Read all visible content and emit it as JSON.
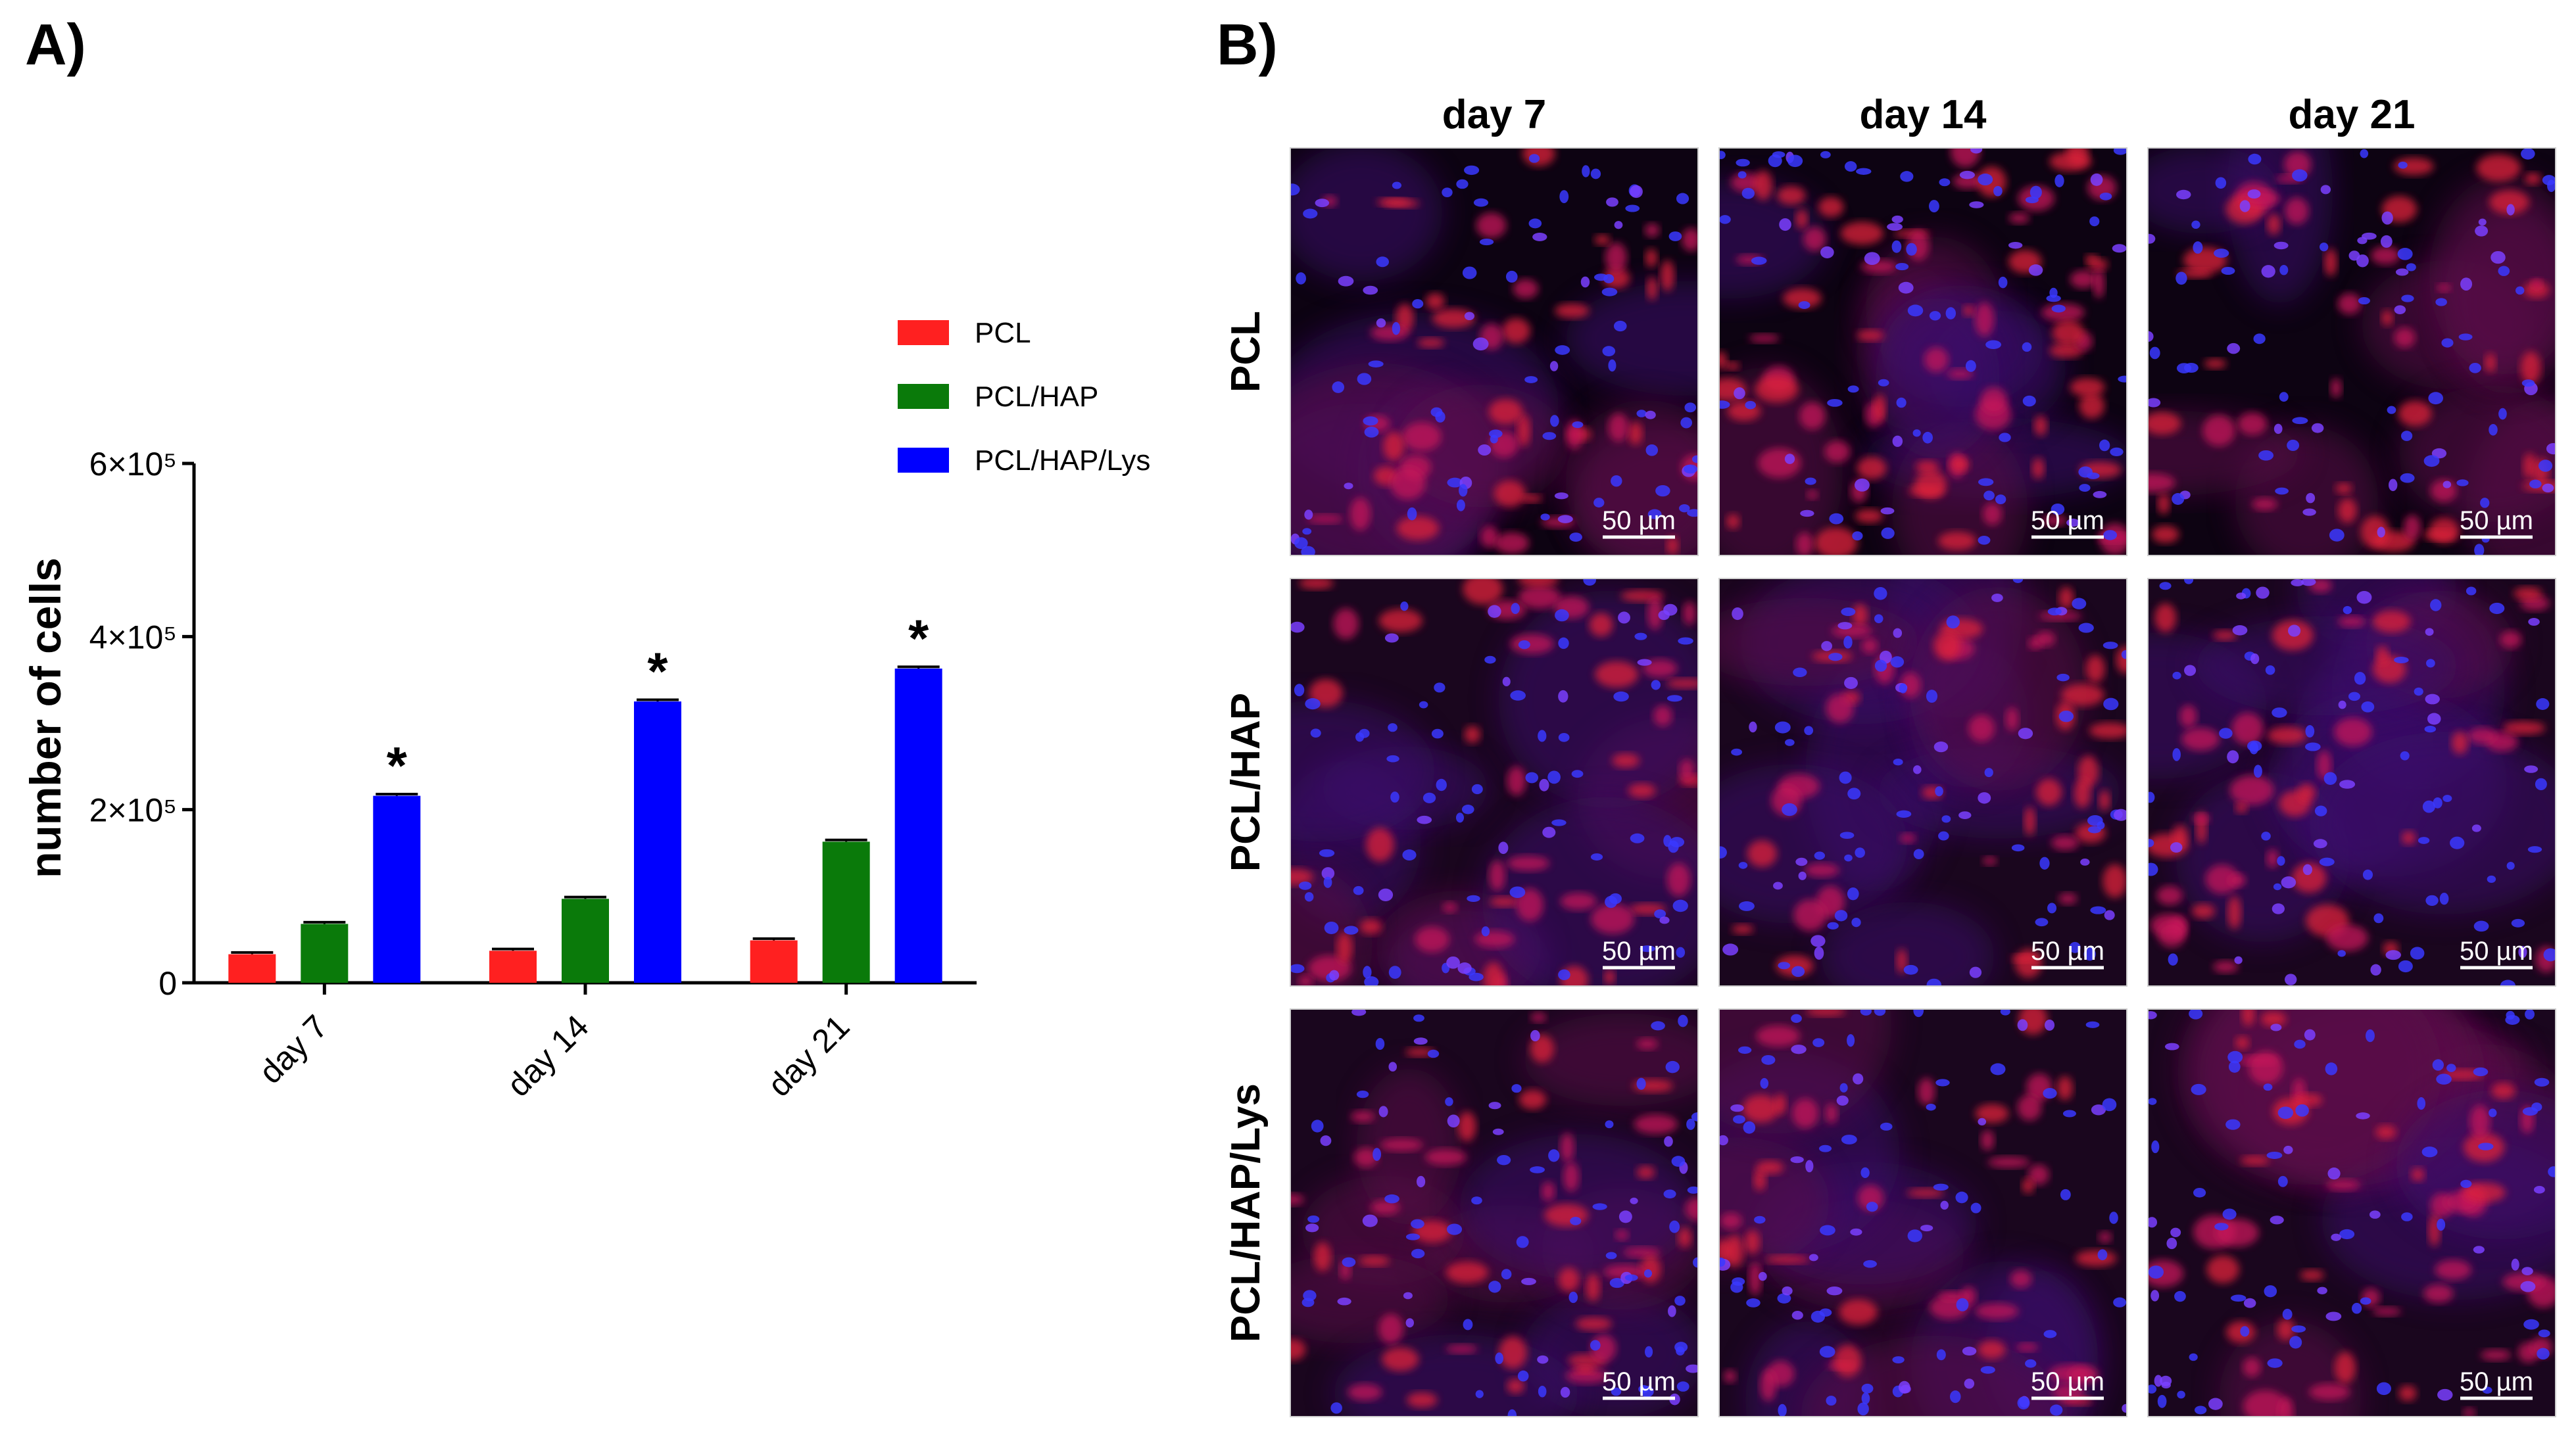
{
  "panel_a_label": "A)",
  "panel_b_label": "B)",
  "chart_data": {
    "type": "bar",
    "categories": [
      "day 7",
      "day 14",
      "day 21"
    ],
    "series": [
      {
        "name": "PCL",
        "values": [
          33000,
          37000,
          49000
        ],
        "errors": [
          2000,
          2000,
          2000
        ],
        "color": "#ff2020"
      },
      {
        "name": "PCL/HAP",
        "values": [
          68000,
          97000,
          163000
        ],
        "errors": [
          2000,
          2000,
          2000
        ],
        "color": "#0a7a0a"
      },
      {
        "name": "PCL/HAP/Lys",
        "values": [
          216000,
          325000,
          363000
        ],
        "errors": [
          2000,
          2000,
          2000
        ],
        "color": "#0000ff"
      }
    ],
    "significance_marker": "*",
    "ylabel": "number of cells",
    "ylim": [
      0,
      600000
    ],
    "yticks": [
      0,
      200000,
      400000,
      600000
    ],
    "ytick_labels": [
      "0",
      "2×10⁵",
      "4×10⁵",
      "6×10⁵"
    ],
    "legend_position": "top-right",
    "grid": false
  },
  "micrographs": {
    "columns": [
      "day 7",
      "day 14",
      "day 21"
    ],
    "rows": [
      "PCL",
      "PCL/HAP",
      "PCL/HAP/Lys"
    ],
    "scale_bar_label": "50 µm"
  }
}
